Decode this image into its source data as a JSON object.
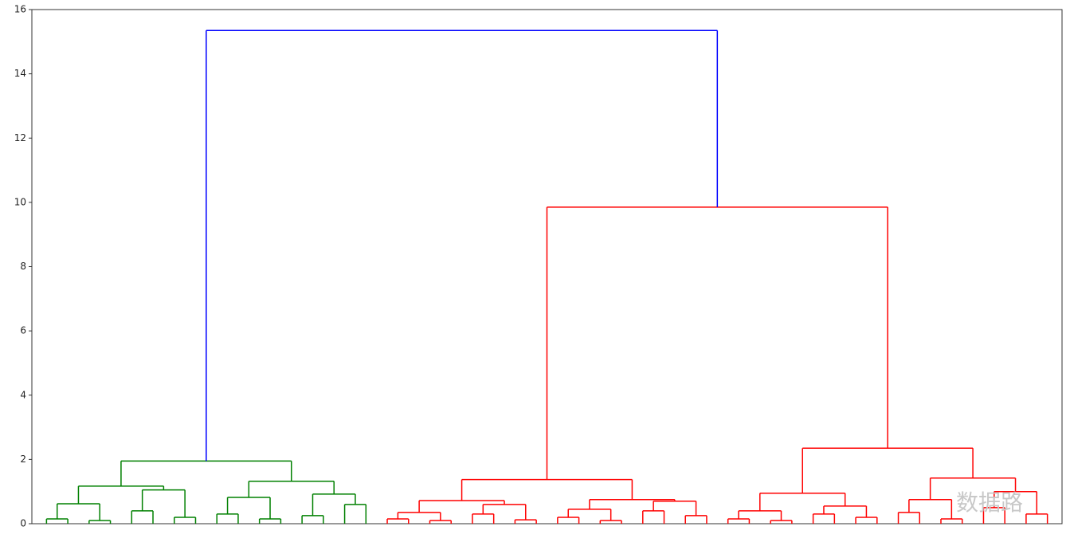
{
  "chart_data": {
    "type": "dendrogram",
    "ylim": [
      0,
      16
    ],
    "yticks": [
      0,
      2,
      4,
      6,
      8,
      10,
      12,
      14,
      16
    ],
    "watermark": "数据路",
    "tree": {
      "height": 15.35,
      "color": "#0000ff",
      "children": [
        {
          "height": 1.95,
          "color": "#008000",
          "children": [
            {
              "height": 1.17,
              "children": [
                {
                  "height": 0.62,
                  "children": [
                    {
                      "height": 0.15,
                      "children": [
                        {
                          "height": 0
                        },
                        {
                          "height": 0
                        }
                      ]
                    },
                    {
                      "height": 0.1,
                      "children": [
                        {
                          "height": 0
                        },
                        {
                          "height": 0
                        }
                      ]
                    }
                  ]
                },
                {
                  "height": 1.05,
                  "children": [
                    {
                      "height": 0.4,
                      "children": [
                        {
                          "height": 0
                        },
                        {
                          "height": 0
                        }
                      ]
                    },
                    {
                      "height": 0.2,
                      "children": [
                        {
                          "height": 0
                        },
                        {
                          "height": 0
                        }
                      ]
                    }
                  ]
                }
              ]
            },
            {
              "height": 1.32,
              "children": [
                {
                  "height": 0.82,
                  "children": [
                    {
                      "height": 0.3,
                      "children": [
                        {
                          "height": 0
                        },
                        {
                          "height": 0
                        }
                      ]
                    },
                    {
                      "height": 0.15,
                      "children": [
                        {
                          "height": 0
                        },
                        {
                          "height": 0
                        }
                      ]
                    }
                  ]
                },
                {
                  "height": 0.92,
                  "children": [
                    {
                      "height": 0.25,
                      "children": [
                        {
                          "height": 0
                        },
                        {
                          "height": 0
                        }
                      ]
                    },
                    {
                      "height": 0.6,
                      "children": [
                        {
                          "height": 0
                        },
                        {
                          "height": 0
                        }
                      ]
                    }
                  ]
                }
              ]
            }
          ]
        },
        {
          "height": 9.85,
          "color": "#ff0000",
          "children": [
            {
              "height": 1.375,
              "children": [
                {
                  "height": 0.72,
                  "children": [
                    {
                      "height": 0.35,
                      "children": [
                        {
                          "height": 0.15,
                          "children": [
                            {
                              "height": 0
                            },
                            {
                              "height": 0
                            }
                          ]
                        },
                        {
                          "height": 0.1,
                          "children": [
                            {
                              "height": 0
                            },
                            {
                              "height": 0
                            }
                          ]
                        }
                      ]
                    },
                    {
                      "height": 0.6,
                      "children": [
                        {
                          "height": 0.3,
                          "children": [
                            {
                              "height": 0
                            },
                            {
                              "height": 0
                            }
                          ]
                        },
                        {
                          "height": 0.12,
                          "children": [
                            {
                              "height": 0
                            },
                            {
                              "height": 0
                            }
                          ]
                        }
                      ]
                    }
                  ]
                },
                {
                  "height": 0.75,
                  "children": [
                    {
                      "height": 0.45,
                      "children": [
                        {
                          "height": 0.2,
                          "children": [
                            {
                              "height": 0
                            },
                            {
                              "height": 0
                            }
                          ]
                        },
                        {
                          "height": 0.1,
                          "children": [
                            {
                              "height": 0
                            },
                            {
                              "height": 0
                            }
                          ]
                        }
                      ]
                    },
                    {
                      "height": 0.7,
                      "children": [
                        {
                          "height": 0.4,
                          "children": [
                            {
                              "height": 0
                            },
                            {
                              "height": 0
                            }
                          ]
                        },
                        {
                          "height": 0.25,
                          "children": [
                            {
                              "height": 0
                            },
                            {
                              "height": 0
                            }
                          ]
                        }
                      ]
                    }
                  ]
                }
              ]
            },
            {
              "height": 2.35,
              "children": [
                {
                  "height": 0.95,
                  "children": [
                    {
                      "height": 0.4,
                      "children": [
                        {
                          "height": 0.15,
                          "children": [
                            {
                              "height": 0
                            },
                            {
                              "height": 0
                            }
                          ]
                        },
                        {
                          "height": 0.1,
                          "children": [
                            {
                              "height": 0
                            },
                            {
                              "height": 0
                            }
                          ]
                        }
                      ]
                    },
                    {
                      "height": 0.55,
                      "children": [
                        {
                          "height": 0.3,
                          "children": [
                            {
                              "height": 0
                            },
                            {
                              "height": 0
                            }
                          ]
                        },
                        {
                          "height": 0.2,
                          "children": [
                            {
                              "height": 0
                            },
                            {
                              "height": 0
                            }
                          ]
                        }
                      ]
                    }
                  ]
                },
                {
                  "height": 1.42,
                  "children": [
                    {
                      "height": 0.75,
                      "children": [
                        {
                          "height": 0.35,
                          "children": [
                            {
                              "height": 0
                            },
                            {
                              "height": 0
                            }
                          ]
                        },
                        {
                          "height": 0.15,
                          "children": [
                            {
                              "height": 0
                            },
                            {
                              "height": 0
                            }
                          ]
                        }
                      ]
                    },
                    {
                      "height": 1.0,
                      "children": [
                        {
                          "height": 0.5,
                          "children": [
                            {
                              "height": 0
                            },
                            {
                              "height": 0
                            }
                          ]
                        },
                        {
                          "height": 0.3,
                          "children": [
                            {
                              "height": 0
                            },
                            {
                              "height": 0
                            }
                          ]
                        }
                      ]
                    }
                  ]
                }
              ]
            }
          ]
        }
      ]
    }
  }
}
